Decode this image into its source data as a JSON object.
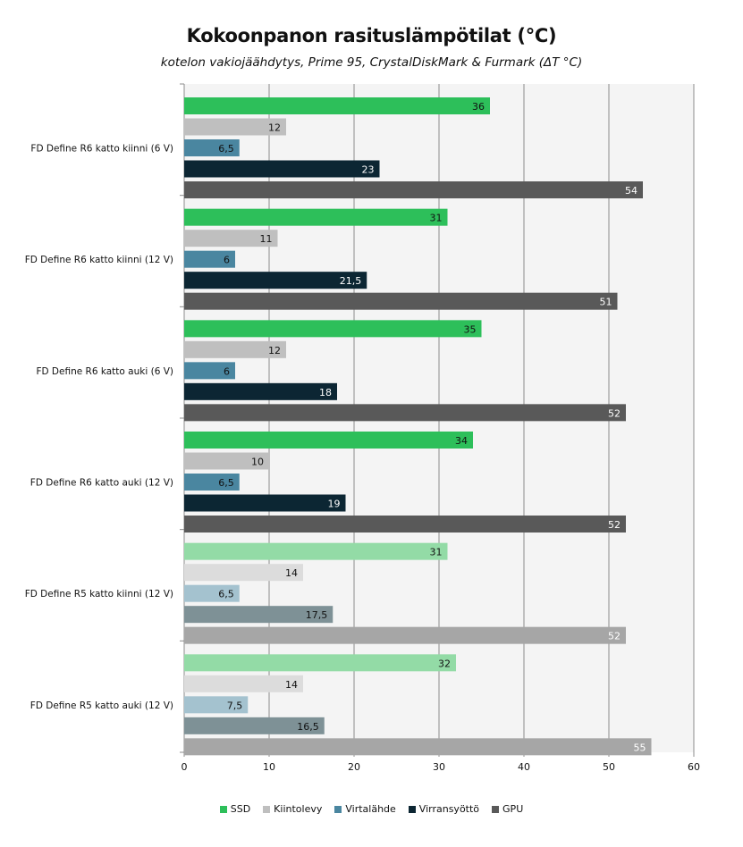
{
  "chart_data": {
    "type": "bar",
    "orientation": "horizontal",
    "title": "Kokoonpanon rasituslämpötilat (°C)",
    "subtitle": "kotelon vakiojäähdytys,  Prime 95, CrystalDiskMark & Furmark (ΔT °C)",
    "xlim": [
      0,
      60
    ],
    "x_ticks": [
      "0",
      "10",
      "20",
      "30",
      "40",
      "50",
      "60"
    ],
    "grid": true,
    "legend_position": "bottom",
    "series_names": [
      "SSD",
      "Kiintolevy",
      "Virtalähde",
      "Virransyöttö",
      "GPU"
    ],
    "series_colors": [
      "#2dbf5a",
      "#bfbfbf",
      "#4a86a0",
      "#0c2633",
      "#595959"
    ],
    "faded_series_colors": [
      "#93dba6",
      "#dcdcdc",
      "#a4c2cf",
      "#7e9196",
      "#a6a6a6"
    ],
    "groups": [
      {
        "label": "FD Define R6 katto kiinni (6 V)",
        "faded": false,
        "values": [
          36,
          12,
          6.5,
          23,
          54
        ],
        "value_labels": [
          "36",
          "12",
          "6,5",
          "23",
          "54"
        ]
      },
      {
        "label": "FD Define R6 katto kiinni (12 V)",
        "faded": false,
        "values": [
          31,
          11,
          6,
          21.5,
          51
        ],
        "value_labels": [
          "31",
          "11",
          "6",
          "21,5",
          "51"
        ]
      },
      {
        "label": "FD Define R6 katto auki (6 V)",
        "faded": false,
        "values": [
          35,
          12,
          6,
          18,
          52
        ],
        "value_labels": [
          "35",
          "12",
          "6",
          "18",
          "52"
        ]
      },
      {
        "label": "FD Define R6 katto auki (12 V)",
        "faded": false,
        "values": [
          34,
          10,
          6.5,
          19,
          52
        ],
        "value_labels": [
          "34",
          "10",
          "6,5",
          "19",
          "52"
        ]
      },
      {
        "label": "FD Define R5 katto kiinni (12 V)",
        "faded": true,
        "values": [
          31,
          14,
          6.5,
          17.5,
          52
        ],
        "value_labels": [
          "31",
          "14",
          "6,5",
          "17,5",
          "52"
        ]
      },
      {
        "label": "FD Define R5 katto auki (12 V)",
        "faded": true,
        "values": [
          32,
          14,
          7.5,
          16.5,
          55
        ],
        "value_labels": [
          "32",
          "14",
          "7,5",
          "16,5",
          "55"
        ]
      }
    ]
  }
}
